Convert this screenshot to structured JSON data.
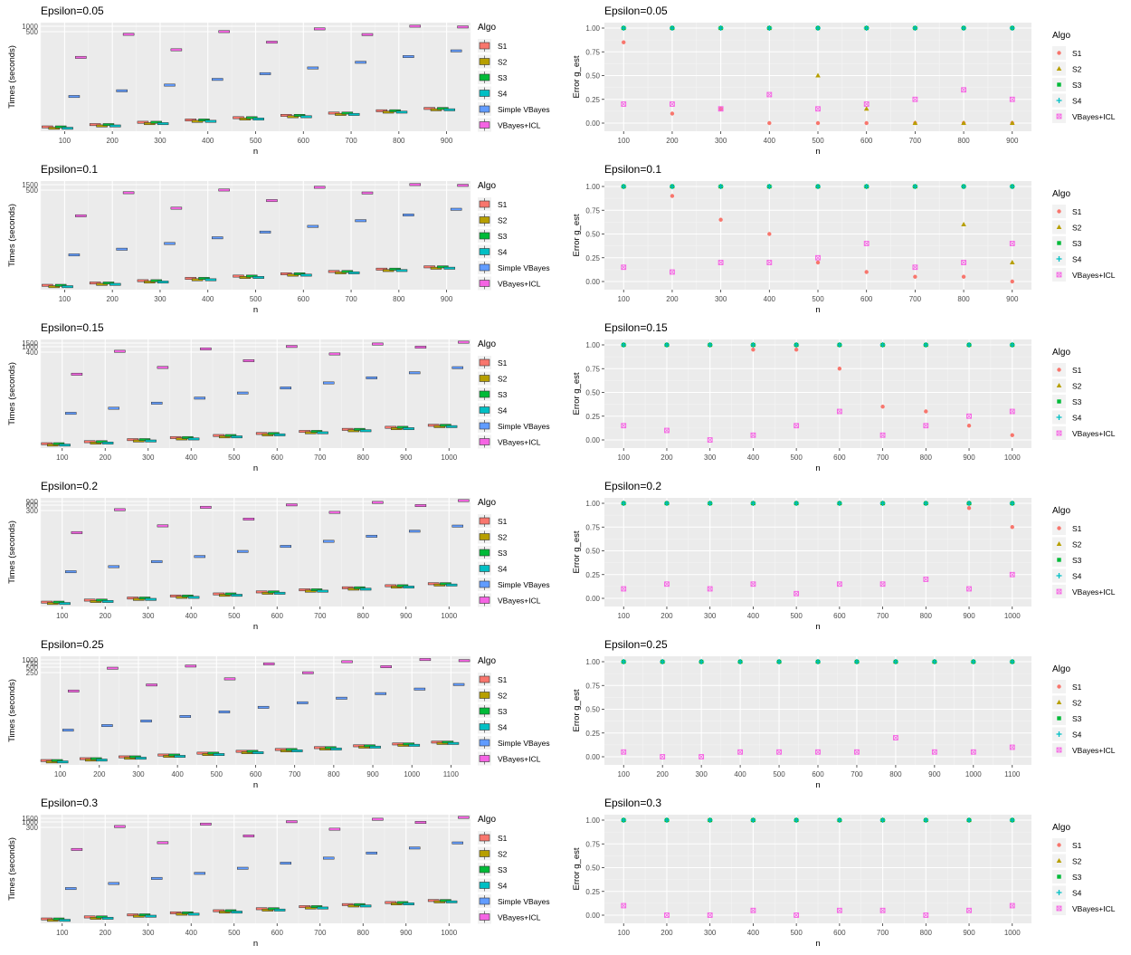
{
  "algos": [
    "S1",
    "S2",
    "S3",
    "S4",
    "Simple VBayes",
    "VBayes+ICL"
  ],
  "err_algos": [
    "S1",
    "S2",
    "S3",
    "S4",
    "VBayes+ICL"
  ],
  "colors": {
    "S1": "#F8766D",
    "S2": "#B79F00",
    "S3": "#00BA38",
    "S4": "#00BFC4",
    "Simple VBayes": "#619CFF",
    "VBayes+ICL": "#F564E3"
  },
  "legend_title": "Algo",
  "chart_data": [
    {
      "type": "box",
      "title": "Epsilon=0.05",
      "xlabel": "n",
      "ylabel": "Times (seconds)",
      "x_ticks": [
        100,
        200,
        300,
        400,
        500,
        600,
        700,
        800,
        900
      ],
      "y_ticks": [
        "1000",
        "500"
      ]
    },
    {
      "type": "scatter",
      "title": "Epsilon=0.05",
      "xlabel": "n",
      "ylabel": "Error g_est",
      "x": [
        100,
        200,
        300,
        400,
        500,
        600,
        700,
        800,
        900
      ],
      "y_ticks": [
        "1.00",
        "0.75",
        "0.50",
        "0.25",
        "0.00"
      ],
      "series": [
        {
          "name": "S1",
          "values": [
            0.85,
            0.1,
            0.15,
            0,
            0,
            0,
            0,
            0,
            0
          ]
        },
        {
          "name": "S2",
          "values": [
            1,
            1,
            1,
            1,
            0.5,
            0.15,
            0,
            0,
            0
          ]
        },
        {
          "name": "S3",
          "values": [
            1,
            1,
            1,
            1,
            1,
            1,
            1,
            1,
            1
          ]
        },
        {
          "name": "S4",
          "values": [
            1,
            1,
            1,
            1,
            1,
            1,
            1,
            1,
            1
          ]
        },
        {
          "name": "VBayes+ICL",
          "values": [
            0.2,
            0.2,
            0.15,
            0.3,
            0.15,
            0.2,
            0.25,
            0.35,
            0.25
          ]
        }
      ]
    },
    {
      "type": "box",
      "title": "Epsilon=0.1",
      "xlabel": "n",
      "ylabel": "Times (seconds)",
      "x_ticks": [
        100,
        200,
        300,
        400,
        500,
        600,
        700,
        800,
        900
      ],
      "y_ticks": [
        "1500",
        "500"
      ]
    },
    {
      "type": "scatter",
      "title": "Epsilon=0.1",
      "xlabel": "n",
      "ylabel": "Error g_est",
      "x": [
        100,
        200,
        300,
        400,
        500,
        600,
        700,
        800,
        900
      ],
      "y_ticks": [
        "1.00",
        "0.75",
        "0.50",
        "0.25",
        "0.00"
      ],
      "series": [
        {
          "name": "S1",
          "values": [
            1,
            0.9,
            0.65,
            0.5,
            0.2,
            0.1,
            0.05,
            0.05,
            0
          ]
        },
        {
          "name": "S2",
          "values": [
            1,
            1,
            1,
            1,
            1,
            1,
            1,
            0.6,
            0.2
          ]
        },
        {
          "name": "S3",
          "values": [
            1,
            1,
            1,
            1,
            1,
            1,
            1,
            1,
            1
          ]
        },
        {
          "name": "S4",
          "values": [
            1,
            1,
            1,
            1,
            1,
            1,
            1,
            1,
            1
          ]
        },
        {
          "name": "VBayes+ICL",
          "values": [
            0.15,
            0.1,
            0.2,
            0.2,
            0.25,
            0.4,
            0.15,
            0.2,
            0.4
          ]
        }
      ]
    },
    {
      "type": "box",
      "title": "Epsilon=0.15",
      "xlabel": "n",
      "ylabel": "Times (seconds)",
      "x_ticks": [
        100,
        200,
        300,
        400,
        500,
        600,
        700,
        800,
        900,
        1000
      ],
      "y_ticks": [
        "1500",
        "1000",
        "400"
      ]
    },
    {
      "type": "scatter",
      "title": "Epsilon=0.15",
      "xlabel": "n",
      "ylabel": "Error g_est",
      "x": [
        100,
        200,
        300,
        400,
        500,
        600,
        700,
        800,
        900,
        1000
      ],
      "y_ticks": [
        "1.00",
        "0.75",
        "0.50",
        "0.25",
        "0.00"
      ],
      "series": [
        {
          "name": "S1",
          "values": [
            1,
            1,
            1,
            0.95,
            0.95,
            0.75,
            0.35,
            0.3,
            0.15,
            0.05
          ]
        },
        {
          "name": "S2",
          "values": [
            1,
            1,
            1,
            1,
            1,
            1,
            1,
            1,
            1,
            1
          ]
        },
        {
          "name": "S3",
          "values": [
            1,
            1,
            1,
            1,
            1,
            1,
            1,
            1,
            1,
            1
          ]
        },
        {
          "name": "S4",
          "values": [
            1,
            1,
            1,
            1,
            1,
            1,
            1,
            1,
            1,
            1
          ]
        },
        {
          "name": "VBayes+ICL",
          "values": [
            0.15,
            0.1,
            0,
            0.05,
            0.15,
            0.3,
            0.05,
            0.15,
            0.25,
            0.3
          ]
        }
      ]
    },
    {
      "type": "box",
      "title": "Epsilon=0.2",
      "xlabel": "n",
      "ylabel": "Times (seconds)",
      "x_ticks": [
        100,
        200,
        300,
        400,
        500,
        600,
        700,
        800,
        900,
        1000
      ],
      "y_ticks": [
        "900",
        "600",
        "300"
      ]
    },
    {
      "type": "scatter",
      "title": "Epsilon=0.2",
      "xlabel": "n",
      "ylabel": "Error g_est",
      "x": [
        100,
        200,
        300,
        400,
        500,
        600,
        700,
        800,
        900,
        1000
      ],
      "y_ticks": [
        "1.00",
        "0.75",
        "0.50",
        "0.25",
        "0.00"
      ],
      "series": [
        {
          "name": "S1",
          "values": [
            1,
            1,
            1,
            1,
            1,
            1,
            1,
            1,
            0.95,
            0.75
          ]
        },
        {
          "name": "S2",
          "values": [
            1,
            1,
            1,
            1,
            1,
            1,
            1,
            1,
            1,
            1
          ]
        },
        {
          "name": "S3",
          "values": [
            1,
            1,
            1,
            1,
            1,
            1,
            1,
            1,
            1,
            1
          ]
        },
        {
          "name": "S4",
          "values": [
            1,
            1,
            1,
            1,
            1,
            1,
            1,
            1,
            1,
            1
          ]
        },
        {
          "name": "VBayes+ICL",
          "values": [
            0.1,
            0.15,
            0.1,
            0.15,
            0.05,
            0.15,
            0.15,
            0.2,
            0.1,
            0.25
          ]
        }
      ]
    },
    {
      "type": "box",
      "title": "Epsilon=0.25",
      "xlabel": "n",
      "ylabel": "Times (seconds)",
      "x_ticks": [
        100,
        200,
        300,
        400,
        500,
        600,
        700,
        800,
        900,
        1000,
        1100
      ],
      "y_ticks": [
        "1000",
        "750",
        "500",
        "250"
      ]
    },
    {
      "type": "scatter",
      "title": "Epsilon=0.25",
      "xlabel": "n",
      "ylabel": "Error g_est",
      "x": [
        100,
        200,
        300,
        400,
        500,
        600,
        700,
        800,
        900,
        1000,
        1100
      ],
      "y_ticks": [
        "1.00",
        "0.75",
        "0.50",
        "0.25",
        "0.00"
      ],
      "series": [
        {
          "name": "S1",
          "values": [
            1,
            1,
            1,
            1,
            1,
            1,
            1,
            1,
            1,
            1,
            1
          ]
        },
        {
          "name": "S2",
          "values": [
            1,
            1,
            1,
            1,
            1,
            1,
            1,
            1,
            1,
            1,
            1
          ]
        },
        {
          "name": "S3",
          "values": [
            1,
            1,
            1,
            1,
            1,
            1,
            1,
            1,
            1,
            1,
            1
          ]
        },
        {
          "name": "S4",
          "values": [
            1,
            1,
            1,
            1,
            1,
            1,
            1,
            1,
            1,
            1,
            1
          ]
        },
        {
          "name": "VBayes+ICL",
          "values": [
            0.05,
            0,
            0,
            0.05,
            0.05,
            0.05,
            0.05,
            0.2,
            0.05,
            0.05,
            0.1
          ]
        }
      ]
    },
    {
      "type": "box",
      "title": "Epsilon=0.3",
      "xlabel": "n",
      "ylabel": "Times (seconds)",
      "x_ticks": [
        100,
        200,
        300,
        400,
        500,
        600,
        700,
        800,
        900,
        1000
      ],
      "y_ticks": [
        "1500",
        "1000",
        "300"
      ]
    },
    {
      "type": "scatter",
      "title": "Epsilon=0.3",
      "xlabel": "n",
      "ylabel": "Error g_est",
      "x": [
        100,
        200,
        300,
        400,
        500,
        600,
        700,
        800,
        900,
        1000
      ],
      "y_ticks": [
        "1.00",
        "0.75",
        "0.50",
        "0.25",
        "0.00"
      ],
      "series": [
        {
          "name": "S1",
          "values": [
            1,
            1,
            1,
            1,
            1,
            1,
            1,
            1,
            1,
            1
          ]
        },
        {
          "name": "S2",
          "values": [
            1,
            1,
            1,
            1,
            1,
            1,
            1,
            1,
            1,
            1
          ]
        },
        {
          "name": "S3",
          "values": [
            1,
            1,
            1,
            1,
            1,
            1,
            1,
            1,
            1,
            1
          ]
        },
        {
          "name": "S4",
          "values": [
            1,
            1,
            1,
            1,
            1,
            1,
            1,
            1,
            1,
            1
          ]
        },
        {
          "name": "VBayes+ICL",
          "values": [
            0.1,
            0,
            0,
            0.05,
            0,
            0.05,
            0.05,
            0,
            0.05,
            0.1
          ]
        }
      ]
    }
  ]
}
